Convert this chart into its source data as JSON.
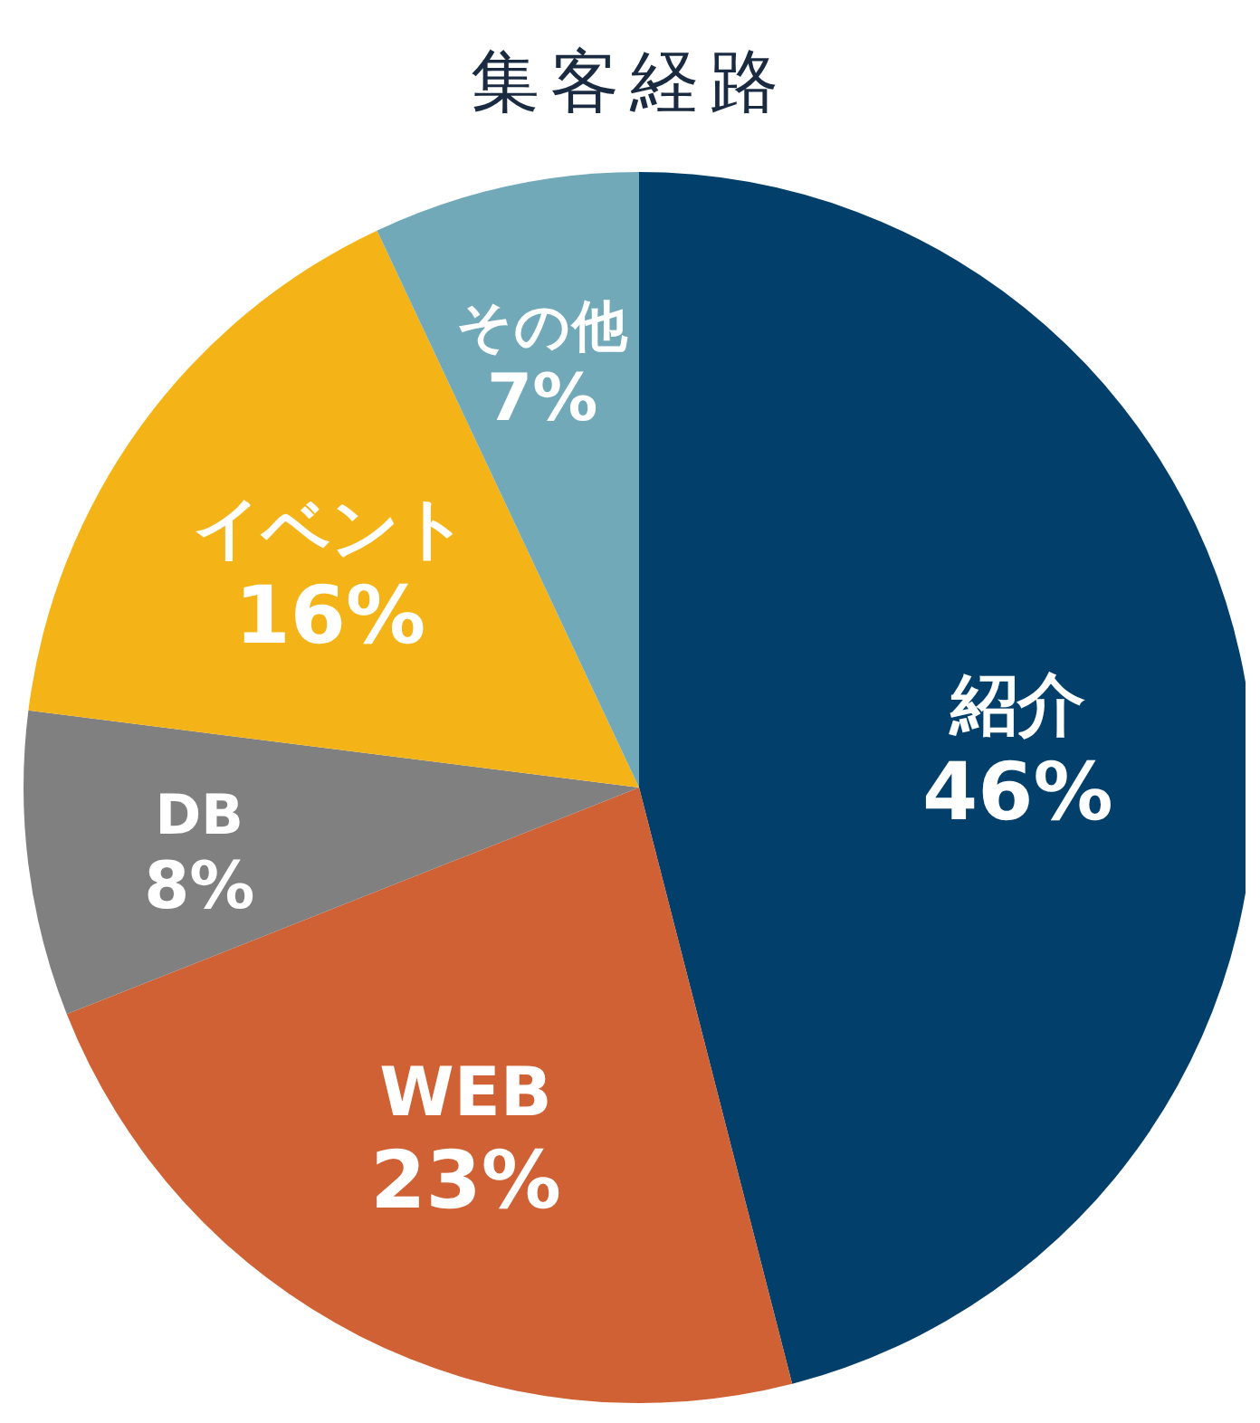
{
  "chart_data": {
    "type": "pie",
    "title": "集客経路",
    "categories": [
      "紹介",
      "WEB",
      "DB",
      "イベント",
      "その他"
    ],
    "values": [
      46,
      23,
      8,
      16,
      7
    ],
    "value_labels": [
      "46%",
      "23%",
      "8%",
      "16%",
      "7%"
    ],
    "colors": [
      "#02406b",
      "#cf6135",
      "#808080",
      "#f4b418",
      "#72a9b9"
    ],
    "legend": false
  }
}
